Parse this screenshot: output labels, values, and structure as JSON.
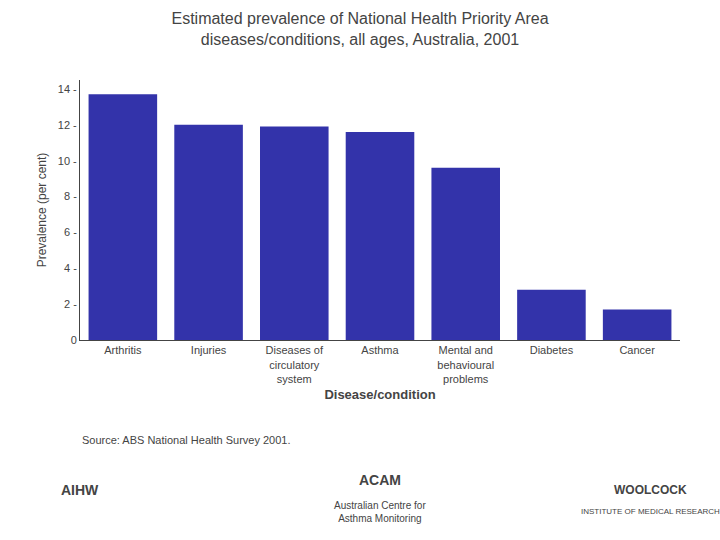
{
  "chart_data": {
    "type": "bar",
    "title": "Estimated prevalence of National Health Priority Area\ndiseases/conditions, all ages, Australia, 2001",
    "categories": [
      "Arthritis",
      "Injuries",
      "Diseases of\ncirculatory\nsystem",
      "Asthma",
      "Mental and\nbehavioural\nproblems",
      "Diabetes",
      "Cancer"
    ],
    "values": [
      13.7,
      12.0,
      11.9,
      11.6,
      9.6,
      2.8,
      1.7
    ],
    "color": "#3333aa",
    "xlabel": "Disease/condition",
    "ylabel": "Prevalence (per cent)",
    "ylim": [
      0,
      14.5
    ],
    "yticks": [
      0,
      {
        "value": 2,
        "label": "2 -"
      },
      {
        "value": 4,
        "label": "4 -"
      },
      {
        "value": 6,
        "label": "6 -"
      },
      {
        "value": 8,
        "label": "8 -"
      },
      {
        "value": 10,
        "label": "10 -"
      },
      {
        "value": 12,
        "label": "12 -"
      },
      {
        "value": 14,
        "label": "14 -"
      }
    ],
    "grid": false,
    "annotations": [
      "Source: ABS National Health Survey 2001.",
      "AIHW",
      "ACAM",
      "Australian Centre for\nAsthma Monitoring",
      "WOOLCOCK",
      "INSTITUTE OF MEDICAL RESEARCH"
    ]
  }
}
